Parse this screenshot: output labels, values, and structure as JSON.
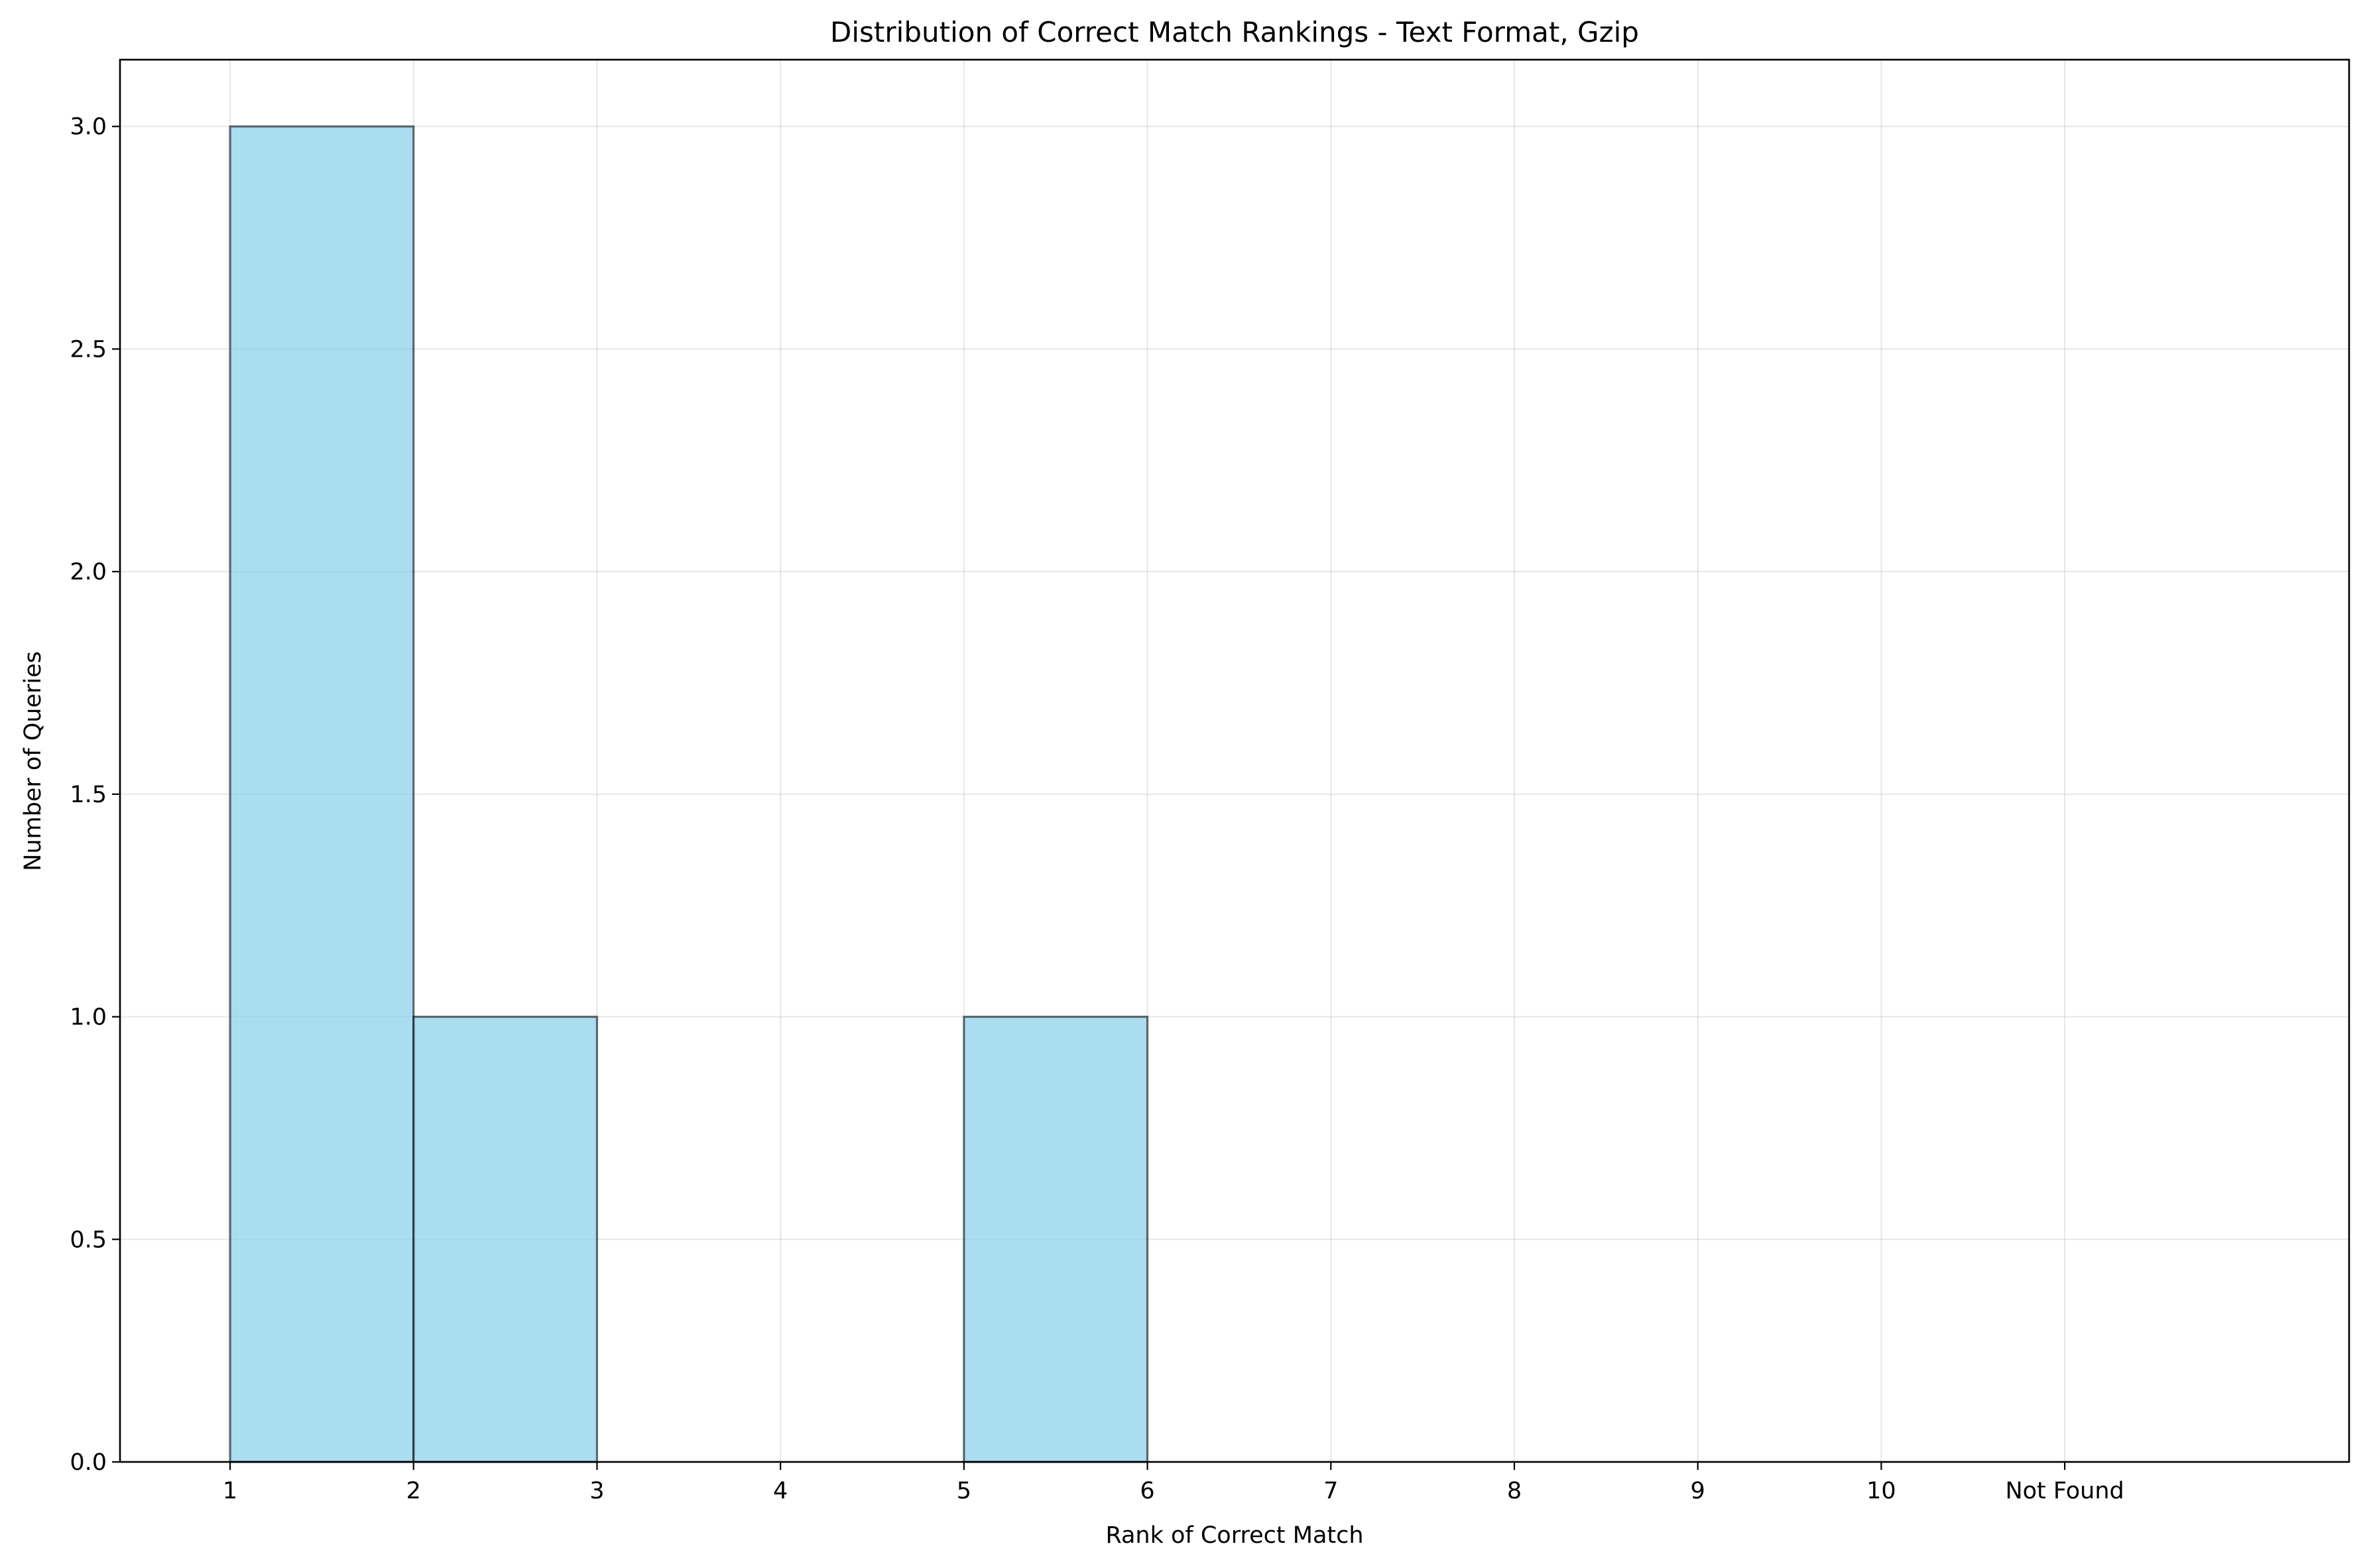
{
  "chart_data": {
    "type": "bar",
    "title": "Distribution of Correct Match Rankings - Text Format, Gzip",
    "xlabel": "Rank of Correct Match",
    "ylabel": "Number of Queries",
    "x_tick_labels": [
      "1",
      "2",
      "3",
      "4",
      "5",
      "6",
      "7",
      "8",
      "9",
      "10",
      "Not Found"
    ],
    "y_tick_labels": [
      "0.0",
      "0.5",
      "1.0",
      "1.5",
      "2.0",
      "2.5",
      "3.0"
    ],
    "bins": [
      {
        "start": 1,
        "end": 2,
        "value": 3
      },
      {
        "start": 2,
        "end": 3,
        "value": 1
      },
      {
        "start": 3,
        "end": 4,
        "value": 0
      },
      {
        "start": 4,
        "end": 5,
        "value": 0
      },
      {
        "start": 5,
        "end": 6,
        "value": 1
      },
      {
        "start": 6,
        "end": 7,
        "value": 0
      },
      {
        "start": 7,
        "end": 8,
        "value": 0
      },
      {
        "start": 8,
        "end": 9,
        "value": 0
      },
      {
        "start": 9,
        "end": 10,
        "value": 0
      },
      {
        "start": 10,
        "end": 11,
        "value": 0
      },
      {
        "start": 11,
        "end": 12,
        "value": 0
      }
    ],
    "xlim": [
      0.4,
      12.55
    ],
    "ylim": [
      0,
      3.15
    ],
    "grid": true,
    "colors": {
      "bar_fill": "#87ceeb",
      "bar_edge": "#000000",
      "grid": "#b0b0b0"
    }
  }
}
